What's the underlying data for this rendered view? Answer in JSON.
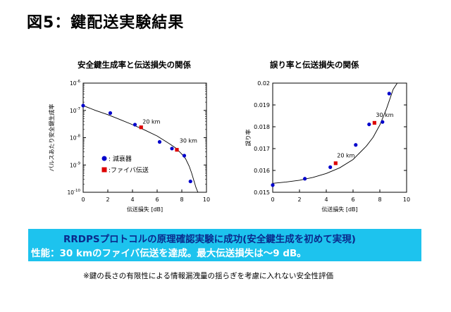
{
  "page": {
    "title": "図5：鍵配送実験結果",
    "summary_line1": "RRDPSプロトコルの原理確認実験に成功(安全鍵生成を初めて実現)",
    "summary_line2": "性能：30 kmのファイバ伝送を達成。最大伝送損失は～9 dB。",
    "footnote": "※鍵の長さの有限性による情報漏洩量の揺らぎを考慮に入れない安全性評価",
    "colors": {
      "accent_box": "#1dc3ee",
      "blue_marker": "#0000cc",
      "red_marker": "#dd0000"
    }
  },
  "chart_data": [
    {
      "type": "scatter",
      "title": "安全鍵生成率と伝送損失の関係",
      "xlabel": "伝送損失 [dB]",
      "ylabel": "パルスあたり安全鍵生成率",
      "xlim": [
        0,
        10
      ],
      "ylim": [
        1e-10,
        1e-06
      ],
      "yscale": "log",
      "xticks": [
        "0",
        "2",
        "4",
        "6",
        "8",
        "10"
      ],
      "yticks": [
        {
          "base": "10",
          "exp": "-6"
        },
        {
          "base": "10",
          "exp": "-7"
        },
        {
          "base": "10",
          "exp": "-8"
        },
        {
          "base": "10",
          "exp": "-9"
        },
        {
          "base": "10",
          "exp": "-10"
        }
      ],
      "legend": {
        "position": "lower-left",
        "entries": [
          {
            "label": ": 減衰器",
            "marker": "circle",
            "color": "#0000cc"
          },
          {
            "label": ":ファイバ伝送",
            "marker": "square",
            "color": "#dd0000"
          }
        ]
      },
      "series": [
        {
          "name": ": 減衰器",
          "marker": "circle",
          "color": "#0000cc",
          "x": [
            0,
            2.2,
            4.2,
            6.2,
            7.2,
            8.2,
            8.7
          ],
          "y": [
            1.5e-07,
            8e-08,
            3e-08,
            7e-09,
            4e-09,
            2.2e-09,
            2.5e-10
          ]
        },
        {
          "name": ":ファイバ伝送",
          "marker": "square",
          "color": "#dd0000",
          "x": [
            4.7,
            7.6
          ],
          "y": [
            2.4e-08,
            3.6e-09
          ]
        }
      ],
      "fit_curve": {
        "x": [
          0,
          1,
          2,
          3,
          4,
          5,
          6,
          7,
          7.5,
          8,
          8.3,
          8.6,
          8.8,
          9.0,
          9.15,
          9.3
        ],
        "y": [
          1.5e-07,
          1e-07,
          7e-08,
          4.6e-08,
          3e-08,
          1.9e-08,
          1.15e-08,
          6e-09,
          4.2e-09,
          2.5e-09,
          1.7e-09,
          9e-10,
          5e-10,
          2.5e-10,
          1.5e-10,
          1e-10
        ]
      },
      "annotations": [
        {
          "text": "20 km",
          "x": 4.7,
          "y": 3.3e-08
        },
        {
          "text": "30 km",
          "x": 7.7,
          "y": 6.5e-09
        }
      ]
    },
    {
      "type": "scatter",
      "title": "誤り率と伝送損失の関係",
      "xlabel": "伝送損失 [dB]",
      "ylabel": "誤り率",
      "xlim": [
        0,
        10
      ],
      "ylim": [
        0.015,
        0.02
      ],
      "xticks": [
        "0",
        "2",
        "4",
        "6",
        "8",
        "10"
      ],
      "yticks": [
        "0.015",
        "0.016",
        "0.017",
        "0.018",
        "0.019",
        "0.02"
      ],
      "series": [
        {
          "name": "",
          "marker": "circle",
          "color": "#0000cc",
          "x": [
            0,
            2.4,
            4.3,
            6.2,
            7.2,
            8.2,
            8.7
          ],
          "y": [
            0.01533,
            0.01562,
            0.01615,
            0.01717,
            0.01811,
            0.01822,
            0.01952
          ]
        },
        {
          "name": "",
          "marker": "square",
          "color": "#dd0000",
          "x": [
            4.7,
            7.6
          ],
          "y": [
            0.01633,
            0.01818
          ]
        }
      ],
      "fit_curve": {
        "x": [
          0,
          1,
          2,
          3,
          4,
          5,
          6,
          7,
          7.5,
          8,
          8.5,
          9.0,
          9.3
        ],
        "y": [
          0.01541,
          0.01547,
          0.01555,
          0.01568,
          0.01586,
          0.01612,
          0.0165,
          0.01712,
          0.01752,
          0.01808,
          0.01883,
          0.01972,
          0.02
        ]
      },
      "annotations": [
        {
          "text": "20 km",
          "x": 4.7,
          "y": 0.0166
        },
        {
          "text": "30 km",
          "x": 7.6,
          "y": 0.01845
        }
      ]
    }
  ]
}
